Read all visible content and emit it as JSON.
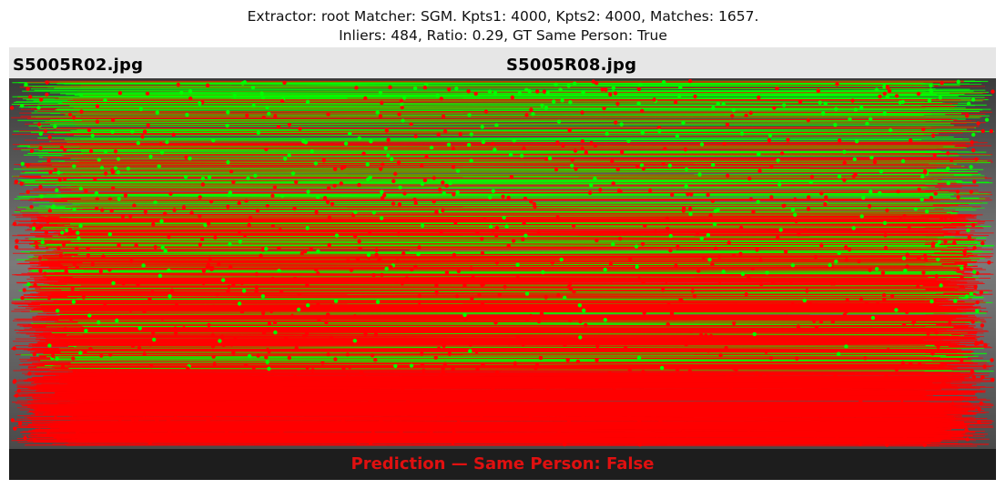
{
  "title": {
    "line1": "Extractor:  root Matcher: SGM. Kpts1: 4000, Kpts2: 4000, Matches: 1657.",
    "line2": "Inliers: 484, Ratio: 0.29, GT Same Person: True"
  },
  "images": {
    "left_name": "S5005R02.jpg",
    "right_name": "S5005R08.jpg"
  },
  "prediction": {
    "text": "Prediction — Same Person: False"
  },
  "colors": {
    "inlier": "#00ff00",
    "outlier": "#ff0000",
    "prediction_text": "#e01010",
    "header_bg": "#e6e6e6",
    "footer_bg": "#1d1d1d"
  }
}
